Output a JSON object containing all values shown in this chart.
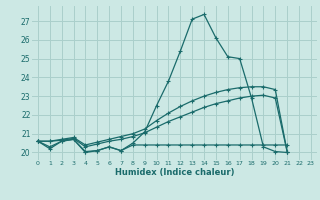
{
  "xlabel": "Humidex (Indice chaleur)",
  "x_ticks": [
    0,
    1,
    2,
    3,
    4,
    5,
    6,
    7,
    8,
    9,
    10,
    11,
    12,
    13,
    14,
    15,
    16,
    17,
    18,
    19,
    20,
    21,
    22,
    23
  ],
  "y_ticks": [
    20,
    21,
    22,
    23,
    24,
    25,
    26,
    27
  ],
  "xlim": [
    -0.5,
    23.5
  ],
  "ylim": [
    19.6,
    27.8
  ],
  "bg_color": "#cce8e4",
  "grid_color": "#aacfcb",
  "line_color": "#1a6b6b",
  "series": {
    "main": {
      "x": [
        0,
        1,
        2,
        3,
        4,
        5,
        6,
        7,
        8,
        9,
        10,
        11,
        12,
        13,
        14,
        15,
        16,
        17,
        18,
        19,
        20,
        21,
        22,
        23
      ],
      "y": [
        20.6,
        20.2,
        20.6,
        20.7,
        20.0,
        20.1,
        20.3,
        20.1,
        20.5,
        21.1,
        22.5,
        23.8,
        25.4,
        27.1,
        27.35,
        26.1,
        25.1,
        25.0,
        22.9,
        20.3,
        20.05,
        20.0,
        null,
        null
      ]
    },
    "flat": {
      "x": [
        0,
        1,
        2,
        3,
        4,
        5,
        6,
        7,
        8,
        9,
        10,
        11,
        12,
        13,
        14,
        15,
        16,
        17,
        18,
        19,
        20,
        21,
        22,
        23
      ],
      "y": [
        20.6,
        20.3,
        20.6,
        20.7,
        20.05,
        20.1,
        20.3,
        20.1,
        20.4,
        20.4,
        20.4,
        20.4,
        20.4,
        20.4,
        20.4,
        20.4,
        20.4,
        20.4,
        20.4,
        20.4,
        20.4,
        20.4,
        null,
        null
      ]
    },
    "diag_low": {
      "x": [
        0,
        1,
        2,
        3,
        4,
        5,
        6,
        7,
        8,
        9,
        10,
        11,
        12,
        13,
        14,
        15,
        16,
        17,
        18,
        19,
        20,
        21,
        22,
        23
      ],
      "y": [
        20.6,
        20.6,
        20.65,
        20.75,
        20.3,
        20.45,
        20.6,
        20.7,
        20.85,
        21.05,
        21.35,
        21.65,
        21.9,
        22.15,
        22.4,
        22.6,
        22.75,
        22.9,
        23.0,
        23.05,
        22.9,
        20.05,
        null,
        null
      ]
    },
    "diag_high": {
      "x": [
        0,
        1,
        2,
        3,
        4,
        5,
        6,
        7,
        8,
        9,
        10,
        11,
        12,
        13,
        14,
        15,
        16,
        17,
        18,
        19,
        20,
        21,
        22,
        23
      ],
      "y": [
        20.6,
        20.6,
        20.7,
        20.8,
        20.4,
        20.55,
        20.7,
        20.85,
        21.0,
        21.25,
        21.7,
        22.1,
        22.45,
        22.75,
        23.0,
        23.2,
        23.35,
        23.45,
        23.5,
        23.5,
        23.35,
        20.05,
        null,
        null
      ]
    }
  }
}
